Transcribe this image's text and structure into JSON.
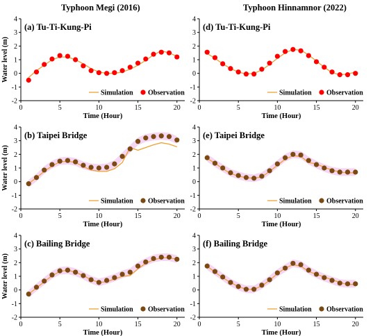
{
  "column_titles": [
    "Typhoon Megi (2016)",
    "Typhoon Hinnamnor (2022)"
  ],
  "colors": {
    "simulation": "#f0a030",
    "observation_red": "#ff0000",
    "observation_brown": "#7b4a12",
    "band": "#f2c8ef",
    "axis": "#000000"
  },
  "legend_labels": {
    "simulation": "Simulation",
    "observation": "Observation"
  },
  "chart_data": [
    {
      "type": "line",
      "title": "(a) Tu-Ti-Kung-Pi",
      "xlabel": "Time (Hour)",
      "ylabel": "Water level (m)",
      "xlim": [
        0,
        21
      ],
      "ylim": [
        -2,
        4
      ],
      "xticks": [
        0,
        5,
        10,
        15,
        20
      ],
      "yticks": [
        -2,
        -1,
        0,
        1,
        2,
        3,
        4
      ],
      "legend": "bottom-right",
      "marker_color": "red",
      "band": false,
      "series": [
        {
          "name": "Simulation",
          "x": [
            1,
            2,
            3,
            4,
            5,
            6,
            7,
            8,
            9,
            10,
            11,
            12,
            13,
            14,
            15,
            16,
            17,
            18,
            19,
            20
          ],
          "values": [
            -0.3,
            0.2,
            0.6,
            1.0,
            1.2,
            1.2,
            1.0,
            0.7,
            0.35,
            0.1,
            0.0,
            0.0,
            0.1,
            0.3,
            0.6,
            0.95,
            1.35,
            1.65,
            1.5,
            1.25
          ]
        },
        {
          "name": "Observation",
          "x": [
            1,
            2,
            3,
            4,
            5,
            6,
            7,
            8,
            9,
            10,
            11,
            12,
            13,
            14,
            15,
            16,
            17,
            18,
            19,
            20
          ],
          "values": [
            -0.5,
            0.1,
            0.65,
            1.05,
            1.3,
            1.25,
            1.0,
            0.55,
            0.2,
            0.05,
            0.0,
            0.05,
            0.2,
            0.45,
            0.75,
            1.05,
            1.4,
            1.55,
            1.5,
            1.2
          ]
        }
      ]
    },
    {
      "type": "line",
      "title": "(d) Tu-Ti-Kung-Pi",
      "xlabel": "Time (Hour)",
      "ylabel": "",
      "xlim": [
        0,
        21
      ],
      "ylim": [
        -2,
        4
      ],
      "xticks": [
        0,
        5,
        10,
        15,
        20
      ],
      "yticks": [
        -2,
        -1,
        0,
        1,
        2,
        3,
        4
      ],
      "legend": "bottom-right",
      "marker_color": "red",
      "band": false,
      "series": [
        {
          "name": "Simulation",
          "x": [
            1,
            2,
            3,
            4,
            5,
            6,
            7,
            8,
            9,
            10,
            11,
            12,
            13,
            14,
            15,
            16,
            17,
            18,
            19,
            20
          ],
          "values": [
            1.45,
            1.1,
            0.7,
            0.35,
            0.1,
            -0.05,
            0.0,
            0.25,
            0.65,
            1.1,
            1.5,
            1.75,
            1.7,
            1.35,
            0.9,
            0.45,
            0.05,
            -0.1,
            -0.05,
            0.1
          ]
        },
        {
          "name": "Observation",
          "x": [
            1,
            2,
            3,
            4,
            5,
            6,
            7,
            8,
            9,
            10,
            11,
            12,
            13,
            14,
            15,
            16,
            17,
            18,
            19,
            20
          ],
          "values": [
            1.55,
            1.15,
            0.7,
            0.35,
            0.1,
            -0.05,
            -0.05,
            0.3,
            0.75,
            1.25,
            1.6,
            1.75,
            1.65,
            1.3,
            0.85,
            0.45,
            0.1,
            -0.1,
            -0.1,
            0.0
          ]
        }
      ]
    },
    {
      "type": "line",
      "title": "(b) Taipei Bridge",
      "xlabel": "Time (Hour)",
      "ylabel": "Water level (m)",
      "xlim": [
        0,
        21
      ],
      "ylim": [
        -2,
        4
      ],
      "xticks": [
        0,
        5,
        10,
        15,
        20
      ],
      "yticks": [
        -2,
        -1,
        0,
        1,
        2,
        3,
        4
      ],
      "legend": "bottom-right",
      "marker_color": "brown",
      "band": true,
      "series": [
        {
          "name": "Simulation",
          "x": [
            1,
            2,
            3,
            4,
            5,
            6,
            7,
            8,
            9,
            10,
            11,
            12,
            13,
            14,
            15,
            16,
            17,
            18,
            19,
            20
          ],
          "values": [
            -0.15,
            0.3,
            0.75,
            1.15,
            1.45,
            1.5,
            1.4,
            1.1,
            0.85,
            0.75,
            0.75,
            0.95,
            1.4,
            2.5,
            2.3,
            2.5,
            2.7,
            2.85,
            2.75,
            2.55
          ]
        },
        {
          "name": "Observation",
          "x": [
            1,
            2,
            3,
            4,
            5,
            6,
            7,
            8,
            9,
            10,
            11,
            12,
            13,
            14,
            15,
            16,
            17,
            18,
            19,
            20
          ],
          "values": [
            -0.15,
            0.3,
            0.85,
            1.25,
            1.5,
            1.55,
            1.45,
            1.2,
            1.05,
            1.0,
            1.05,
            1.3,
            1.85,
            2.4,
            2.95,
            3.2,
            3.3,
            3.35,
            3.3,
            3.05
          ]
        }
      ]
    },
    {
      "type": "line",
      "title": "(e) Taipei Bridge",
      "xlabel": "Time (Hour)",
      "ylabel": "",
      "xlim": [
        0,
        21
      ],
      "ylim": [
        -2,
        4
      ],
      "xticks": [
        0,
        5,
        10,
        15,
        20
      ],
      "yticks": [
        -2,
        -1,
        0,
        1,
        2,
        3,
        4
      ],
      "legend": "bottom-right",
      "marker_color": "brown",
      "band": true,
      "series": [
        {
          "name": "Simulation",
          "x": [
            1,
            2,
            3,
            4,
            5,
            6,
            7,
            8,
            9,
            10,
            11,
            12,
            13,
            14,
            15,
            16,
            17,
            18,
            19,
            20
          ],
          "values": [
            1.7,
            1.35,
            0.95,
            0.6,
            0.4,
            0.3,
            0.25,
            0.35,
            0.75,
            1.2,
            1.65,
            1.9,
            1.85,
            1.4,
            1.3,
            1.05,
            0.85,
            0.7,
            0.65,
            0.65
          ]
        },
        {
          "name": "Observation",
          "x": [
            1,
            2,
            3,
            4,
            5,
            6,
            7,
            8,
            9,
            10,
            11,
            12,
            13,
            14,
            15,
            16,
            17,
            18,
            19,
            20
          ],
          "values": [
            1.75,
            1.35,
            1.0,
            0.65,
            0.45,
            0.3,
            0.25,
            0.4,
            0.8,
            1.3,
            1.75,
            2.0,
            1.95,
            1.55,
            1.25,
            1.0,
            0.8,
            0.7,
            0.7,
            0.7
          ]
        }
      ]
    },
    {
      "type": "line",
      "title": "(c) Bailing Bridge",
      "xlabel": "Time (Hour)",
      "ylabel": "Water level (m)",
      "xlim": [
        0,
        21
      ],
      "ylim": [
        -2,
        4
      ],
      "xticks": [
        0,
        5,
        10,
        15,
        20
      ],
      "yticks": [
        -2,
        -1,
        0,
        1,
        2,
        3,
        4
      ],
      "legend": "bottom-right",
      "marker_color": "brown",
      "band": true,
      "series": [
        {
          "name": "Simulation",
          "x": [
            1,
            2,
            3,
            4,
            5,
            6,
            7,
            8,
            9,
            10,
            11,
            12,
            13,
            14,
            15,
            16,
            17,
            18,
            19,
            20
          ],
          "values": [
            -0.3,
            0.15,
            0.6,
            1.05,
            1.35,
            1.45,
            1.3,
            1.05,
            0.75,
            0.55,
            0.6,
            0.8,
            1.0,
            1.05,
            1.55,
            1.95,
            2.2,
            2.35,
            2.35,
            2.25
          ]
        },
        {
          "name": "Observation",
          "x": [
            1,
            2,
            3,
            4,
            5,
            6,
            7,
            8,
            9,
            10,
            11,
            12,
            13,
            14,
            15,
            16,
            17,
            18,
            19,
            20
          ],
          "values": [
            -0.3,
            0.2,
            0.65,
            1.1,
            1.4,
            1.45,
            1.3,
            1.05,
            0.75,
            0.55,
            0.7,
            0.9,
            1.15,
            1.3,
            1.75,
            2.05,
            2.3,
            2.4,
            2.4,
            2.25
          ]
        }
      ]
    },
    {
      "type": "line",
      "title": "(f) Bailing Bridge",
      "xlabel": "Time (Hour)",
      "ylabel": "",
      "xlim": [
        0,
        21
      ],
      "ylim": [
        -2,
        4
      ],
      "xticks": [
        0,
        5,
        10,
        15,
        20
      ],
      "yticks": [
        -2,
        -1,
        0,
        1,
        2,
        3,
        4
      ],
      "legend": "bottom-right",
      "marker_color": "brown",
      "band": true,
      "series": [
        {
          "name": "Simulation",
          "x": [
            1,
            2,
            3,
            4,
            5,
            6,
            7,
            8,
            9,
            10,
            11,
            12,
            13,
            14,
            15,
            16,
            17,
            18,
            19,
            20
          ],
          "values": [
            1.75,
            1.3,
            0.9,
            0.55,
            0.25,
            0.05,
            0.05,
            0.3,
            0.7,
            1.2,
            1.6,
            1.85,
            1.75,
            1.35,
            1.15,
            0.95,
            0.75,
            0.55,
            0.4,
            0.4
          ]
        },
        {
          "name": "Observation",
          "x": [
            1,
            2,
            3,
            4,
            5,
            6,
            7,
            8,
            9,
            10,
            11,
            12,
            13,
            14,
            15,
            16,
            17,
            18,
            19,
            20
          ],
          "values": [
            1.75,
            1.35,
            0.95,
            0.55,
            0.25,
            0.05,
            0.05,
            0.35,
            0.75,
            1.25,
            1.6,
            1.95,
            1.85,
            1.45,
            1.15,
            0.9,
            0.7,
            0.5,
            0.45,
            0.45
          ]
        }
      ]
    }
  ]
}
